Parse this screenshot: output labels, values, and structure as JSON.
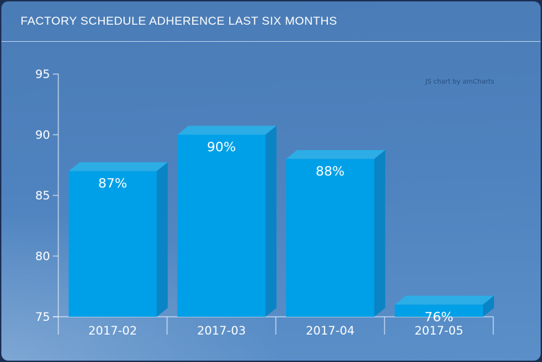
{
  "header": {
    "title": "FACTORY SCHEDULE ADHERENCE LAST SIX MONTHS"
  },
  "watermark": "JS chart by amCharts",
  "colors": {
    "bar_front": "#00a0e8",
    "bar_top": "#2cade5",
    "bar_side": "#0a84c4",
    "axis_line": "rgba(236,245,253,0.65)",
    "label_text": "#ffffff",
    "background_top": "#4a7cb6",
    "background_bottom": "#5a8fc8",
    "header_divider": "rgba(219,234,250,0.75)",
    "watermark_text": "rgba(28,58,104,0.72)"
  },
  "chart_data": {
    "type": "bar",
    "style": "3d-column",
    "title": "FACTORY SCHEDULE ADHERENCE LAST SIX MONTHS",
    "categories": [
      "2017-02",
      "2017-03",
      "2017-04",
      "2017-05"
    ],
    "values": [
      87,
      90,
      88,
      76
    ],
    "value_labels": [
      "87%",
      "90%",
      "88%",
      "76%"
    ],
    "xlabel": "",
    "ylabel": "",
    "ylim": [
      75,
      95
    ],
    "yticks": [
      75,
      80,
      85,
      90,
      95
    ],
    "grid": false,
    "legend": "none"
  }
}
